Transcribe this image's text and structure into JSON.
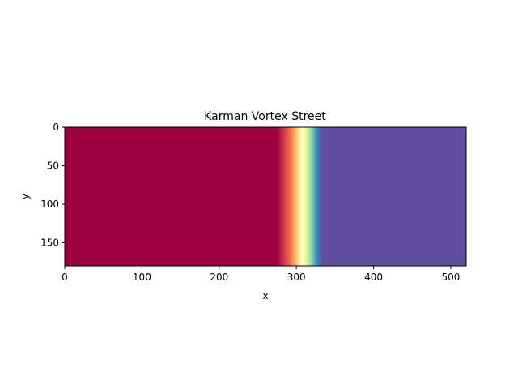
{
  "chart_data": {
    "type": "heatmap",
    "title": "Karman Vortex Street",
    "xlabel": "x",
    "ylabel": "y",
    "xlim": [
      0,
      520
    ],
    "ylim": [
      180,
      0
    ],
    "y_axis_inverted": true,
    "colormap": "Spectral",
    "grid": false,
    "legend": "none",
    "x_ticks": [
      0,
      100,
      200,
      300,
      400,
      500
    ],
    "y_ticks": [
      0,
      50,
      100,
      150
    ],
    "field": {
      "description": "field constant along y, varying only along x",
      "left_color": "#9e0142",
      "right_color": "#5e4fa2",
      "transition": [
        {
          "x": 0,
          "color": "#9e0142"
        },
        {
          "x": 275,
          "color": "#9e0142"
        },
        {
          "x": 285,
          "color": "#d53e4f"
        },
        {
          "x": 292,
          "color": "#f46d43"
        },
        {
          "x": 298,
          "color": "#fdae61"
        },
        {
          "x": 303,
          "color": "#fee08b"
        },
        {
          "x": 308,
          "color": "#ffffbf"
        },
        {
          "x": 313,
          "color": "#e6f598"
        },
        {
          "x": 318,
          "color": "#abdda4"
        },
        {
          "x": 322,
          "color": "#66c2a5"
        },
        {
          "x": 327,
          "color": "#3288bd"
        },
        {
          "x": 333,
          "color": "#5e4fa2"
        },
        {
          "x": 520,
          "color": "#5e4fa2"
        }
      ]
    }
  }
}
